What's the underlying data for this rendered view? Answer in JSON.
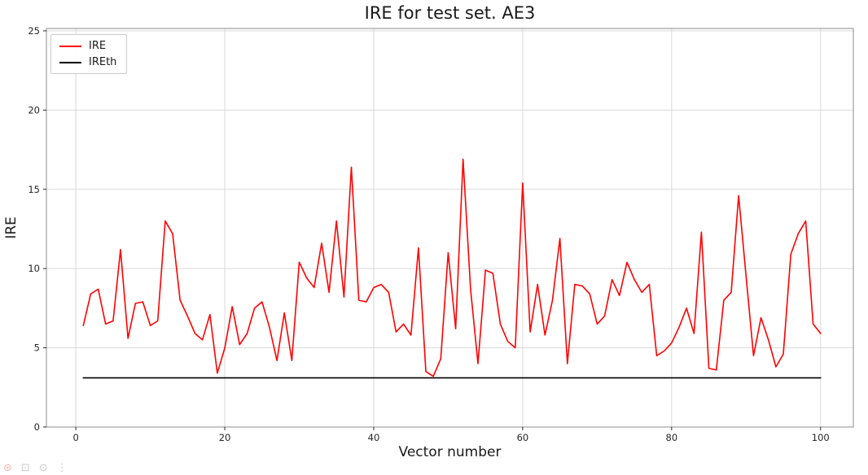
{
  "chart_data": {
    "type": "line",
    "title": "IRE for test set. AE3",
    "xlabel": "Vector number",
    "ylabel": "IRE",
    "xlim": [
      -3.95,
      104.4
    ],
    "ylim": [
      0,
      25.15
    ],
    "x_ticks": [
      0,
      20,
      40,
      60,
      80,
      100
    ],
    "y_ticks": [
      0,
      5,
      10,
      15,
      20,
      25
    ],
    "grid": true,
    "legend_position": "upper left",
    "grid_color": "#d9d9d9",
    "series": [
      {
        "name": "IRE",
        "color": "#ff0000",
        "x_start": 1,
        "x_step": 1,
        "y": [
          6.4,
          8.4,
          8.7,
          6.5,
          6.7,
          11.2,
          5.6,
          7.8,
          7.9,
          6.4,
          6.7,
          13.0,
          12.2,
          8.0,
          7.0,
          5.9,
          5.5,
          7.1,
          3.4,
          5.0,
          7.6,
          5.2,
          5.9,
          7.5,
          7.9,
          6.3,
          4.2,
          7.2,
          4.2,
          10.4,
          9.4,
          8.8,
          11.6,
          8.5,
          13.0,
          8.2,
          16.4,
          8.0,
          7.9,
          8.8,
          9.0,
          8.5,
          6.0,
          6.5,
          5.8,
          11.3,
          3.5,
          3.2,
          4.3,
          11.0,
          6.2,
          16.9,
          8.7,
          4.0,
          9.9,
          9.7,
          6.5,
          5.4,
          5.0,
          15.4,
          6.0,
          9.0,
          5.8,
          8.0,
          11.9,
          4.0,
          9.0,
          8.9,
          8.4,
          6.5,
          7.0,
          9.3,
          8.3,
          10.4,
          9.3,
          8.5,
          9.0,
          4.5,
          4.8,
          5.3,
          6.3,
          7.5,
          5.9,
          12.3,
          3.7,
          3.6,
          8.0,
          8.5,
          14.6,
          9.5,
          4.5,
          6.9,
          5.5,
          3.8,
          4.6,
          10.9,
          12.2,
          13.0,
          6.5,
          5.9
        ]
      },
      {
        "name": "IREth",
        "color": "#000000",
        "x": [
          1,
          100
        ],
        "y": [
          3.1,
          3.1
        ]
      }
    ]
  },
  "toolbar": {
    "icons": [
      "home-icon",
      "pan-icon",
      "zoom-icon",
      "menu-icon"
    ],
    "glyphs": [
      "⊛",
      "⊡",
      "⊙",
      "⋮"
    ]
  }
}
